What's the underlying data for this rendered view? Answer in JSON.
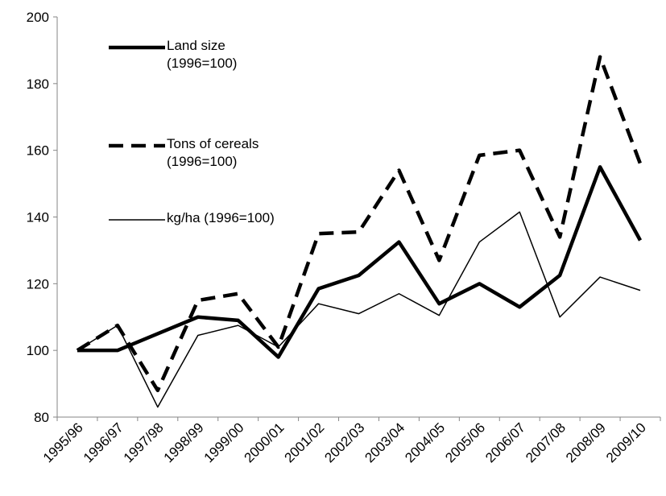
{
  "chart_data": {
    "type": "line",
    "categories": [
      "1995/96",
      "1996/97",
      "1997/98",
      "1998/99",
      "1999/00",
      "2000/01",
      "2001/02",
      "2002/03",
      "2003/04",
      "2004/05",
      "2005/06",
      "2006/07",
      "2007/08",
      "2008/09",
      "2009/10"
    ],
    "series": [
      {
        "name": "Land size (1996=100)",
        "color": "#000000",
        "style": "thick",
        "values": [
          100,
          100,
          105,
          110,
          109,
          98,
          118.5,
          122.5,
          132.5,
          114,
          120,
          113,
          122.5,
          155,
          133
        ]
      },
      {
        "name": "Tons of cereals (1996=100)",
        "color": "#000000",
        "style": "dashed",
        "values": [
          100,
          107.5,
          88,
          115,
          117,
          101,
          135,
          135.5,
          154,
          127,
          158.5,
          160,
          134,
          188,
          156
        ]
      },
      {
        "name": "kg/ha (1996=100)",
        "color": "#000000",
        "style": "thin",
        "values": [
          100,
          107.5,
          83,
          104.5,
          107.5,
          101,
          114,
          111,
          117,
          110.5,
          132.5,
          141.5,
          110,
          122,
          118
        ]
      }
    ],
    "ylim": [
      80,
      200
    ],
    "yticks": [
      80,
      100,
      120,
      140,
      160,
      180,
      200
    ],
    "grid": false
  }
}
